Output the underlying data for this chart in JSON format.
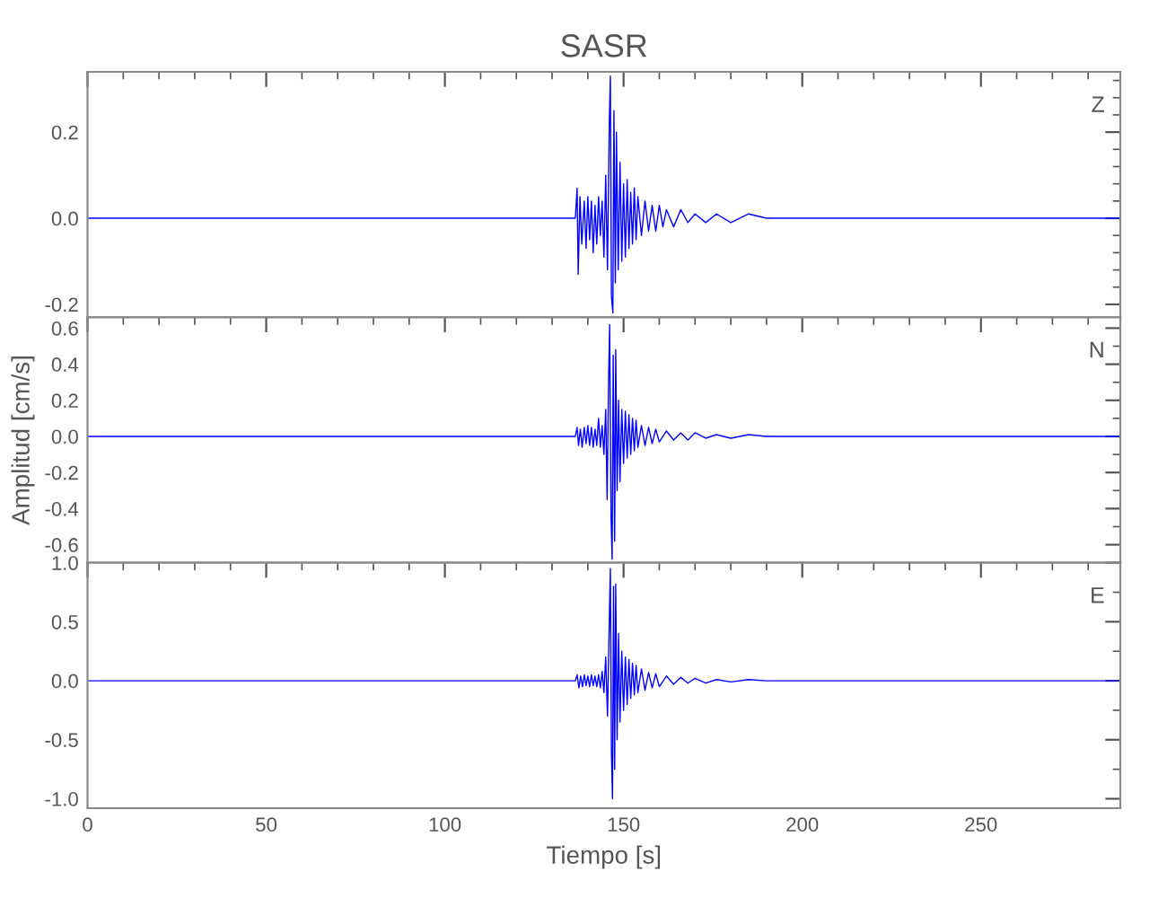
{
  "chart_data": [
    {
      "type": "line",
      "title": "SASR",
      "annotations": [
        "Z"
      ],
      "xlim": [
        0,
        289
      ],
      "ylim": [
        -0.23,
        0.34
      ],
      "yticks": [
        -0.2,
        {
          "value": 0,
          "label": "0.0"
        },
        0.2
      ],
      "tick_labels": "y",
      "grid": false,
      "legend": false,
      "series": [
        {
          "color": "#0000ff",
          "x": [
            0,
            136.5,
            137,
            137.3,
            137.8,
            138.3,
            139,
            139.5,
            140,
            140.5,
            141,
            141.5,
            142,
            142.5,
            143,
            143.5,
            144,
            144.5,
            145,
            145.5,
            146,
            146.3,
            146.6,
            147,
            147.3,
            147.7,
            148,
            148.5,
            149,
            149.5,
            150,
            150.5,
            151,
            151.5,
            152,
            152.5,
            153,
            153.5,
            154,
            155,
            156,
            157,
            158,
            159,
            160,
            161,
            162,
            164,
            166,
            168,
            170,
            173,
            176,
            180,
            185,
            190,
            200,
            210,
            230,
            250,
            289
          ],
          "values": [
            0,
            0,
            0.07,
            -0.13,
            0.05,
            -0.06,
            0.04,
            -0.07,
            0.05,
            -0.05,
            0.04,
            -0.08,
            0.03,
            -0.06,
            0.05,
            -0.04,
            0.04,
            -0.09,
            0.1,
            -0.12,
            0.22,
            0.33,
            -0.18,
            -0.22,
            0.25,
            -0.15,
            0.2,
            -0.12,
            0.13,
            -0.1,
            0.08,
            -0.09,
            0.09,
            -0.07,
            0.06,
            -0.06,
            0.07,
            -0.05,
            0.05,
            -0.04,
            0.04,
            -0.03,
            0.03,
            -0.03,
            0.03,
            -0.02,
            0.02,
            -0.02,
            0.02,
            -0.01,
            0.01,
            -0.01,
            0.01,
            -0.01,
            0.01,
            0,
            0,
            0,
            0,
            0,
            0
          ]
        }
      ]
    },
    {
      "type": "line",
      "ylabel": "Amplitud [cm/s]",
      "annotations": [
        "N"
      ],
      "xlim": [
        0,
        289
      ],
      "ylim": [
        -0.7,
        0.66
      ],
      "yticks": [
        -0.6,
        -0.4,
        -0.2,
        {
          "value": 0,
          "label": "0.0"
        },
        0.2,
        0.4,
        0.6
      ],
      "tick_labels": "y",
      "grid": false,
      "legend": false,
      "series": [
        {
          "color": "#0000ff",
          "x": [
            0,
            136.5,
            137,
            137.4,
            137.9,
            138.4,
            139,
            139.5,
            140,
            140.5,
            141,
            141.5,
            142,
            142.5,
            143,
            143.5,
            144,
            144.5,
            145,
            145.4,
            145.8,
            146.1,
            146.5,
            146.8,
            147.1,
            147.5,
            147.8,
            148.2,
            148.6,
            149,
            149.5,
            150,
            150.5,
            151,
            151.5,
            152,
            152.5,
            153,
            153.5,
            154,
            155,
            156,
            157,
            158,
            159,
            160,
            162,
            164,
            166,
            168,
            170,
            173,
            176,
            180,
            185,
            190,
            200,
            220,
            250,
            289
          ],
          "values": [
            0,
            0,
            0.05,
            -0.05,
            0.04,
            -0.06,
            0.05,
            -0.04,
            0.06,
            -0.05,
            0.05,
            -0.06,
            0.04,
            -0.05,
            0.1,
            -0.06,
            0.06,
            -0.1,
            0.15,
            -0.35,
            0.3,
            0.62,
            -0.45,
            -0.68,
            0.45,
            -0.58,
            0.48,
            -0.3,
            0.2,
            -0.25,
            0.15,
            -0.15,
            0.14,
            -0.12,
            0.12,
            -0.1,
            0.1,
            -0.08,
            0.09,
            -0.06,
            0.06,
            -0.05,
            0.05,
            -0.04,
            0.04,
            -0.03,
            0.03,
            -0.02,
            0.02,
            -0.02,
            0.02,
            -0.01,
            0.01,
            -0.01,
            0.01,
            0,
            0,
            0,
            0,
            0
          ]
        }
      ]
    },
    {
      "type": "line",
      "xlabel": "Tiempo [s]",
      "annotations": [
        "E"
      ],
      "xlim": [
        0,
        289
      ],
      "xticks": [
        0,
        50,
        100,
        150,
        200,
        250
      ],
      "ylim": [
        -1.08,
        1.0
      ],
      "yticks": [
        {
          "value": -1,
          "label": "-1.0"
        },
        -0.5,
        {
          "value": 0,
          "label": "0.0"
        },
        0.5,
        {
          "value": 1,
          "label": "1.0"
        }
      ],
      "grid": false,
      "legend": false,
      "series": [
        {
          "color": "#0000ff",
          "x": [
            0,
            136.5,
            137,
            137.5,
            138,
            138.5,
            139,
            139.5,
            140,
            140.5,
            141,
            141.5,
            142,
            142.5,
            143,
            143.5,
            144,
            144.5,
            145,
            145.5,
            146,
            146.3,
            146.6,
            146.9,
            147.2,
            147.5,
            147.8,
            148.2,
            148.6,
            149,
            149.5,
            150,
            150.5,
            151,
            151.5,
            152,
            152.5,
            153,
            153.5,
            154,
            155,
            156,
            157,
            158,
            159,
            160,
            162,
            164,
            166,
            168,
            170,
            173,
            176,
            180,
            185,
            190,
            200,
            220,
            250,
            289
          ],
          "values": [
            0,
            0,
            0.05,
            -0.06,
            0.04,
            -0.05,
            0.05,
            -0.04,
            0.04,
            -0.05,
            0.05,
            -0.04,
            0.04,
            -0.05,
            0.05,
            -0.06,
            0.08,
            -0.1,
            0.2,
            -0.3,
            0.5,
            0.95,
            -0.6,
            -1.0,
            0.8,
            -0.75,
            0.82,
            -0.5,
            0.4,
            -0.35,
            0.25,
            -0.25,
            0.2,
            -0.2,
            0.18,
            -0.15,
            0.15,
            -0.12,
            0.13,
            -0.1,
            0.1,
            -0.08,
            0.07,
            -0.06,
            0.06,
            -0.05,
            0.04,
            -0.03,
            0.03,
            -0.02,
            0.02,
            -0.02,
            0.01,
            -0.01,
            0.01,
            0,
            0,
            0,
            0,
            0
          ]
        }
      ]
    }
  ]
}
